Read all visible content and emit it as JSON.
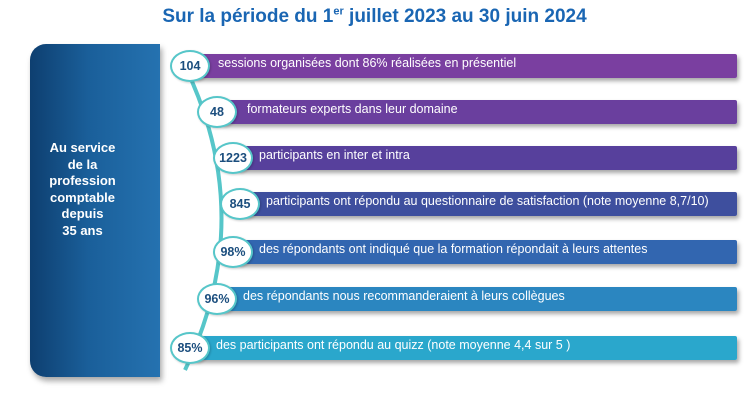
{
  "title": {
    "before": "Sur la période du 1",
    "sup": "er",
    "after": " juillet 2023 au 30 juin 2024"
  },
  "left_panel": {
    "text": "Au service\nde la\nprofession\ncomptable\ndepuis\n35 ans"
  },
  "rows": [
    {
      "number": "104",
      "text": "sessions organisées dont 86% réalisées en présentiel",
      "color": "#7a3fa0"
    },
    {
      "number": "48",
      "text": "formateurs experts dans leur domaine",
      "color": "#6a3f9e"
    },
    {
      "number": "1223",
      "text": "participants en inter et intra",
      "color": "#57409c"
    },
    {
      "number": "845",
      "text": "participants ont répondu au questionnaire de satisfaction (note moyenne 8,7/10)",
      "color": "#3e4f9e"
    },
    {
      "number": "98%",
      "text": "des répondants ont indiqué que la formation répondait à leurs attentes",
      "color": "#3266b0"
    },
    {
      "number": "96%",
      "text": "des répondants nous recommanderaient à leurs collègues",
      "color": "#2b86c0"
    },
    {
      "number": "85%",
      "text": "des participants ont répondu au quizz (note moyenne 4,4 sur 5 )",
      "color": "#2aa7cc"
    }
  ]
}
